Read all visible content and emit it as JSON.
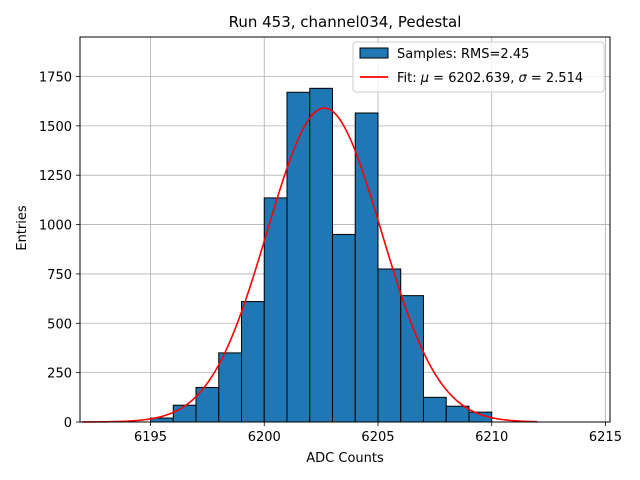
{
  "chart_data": {
    "type": "bar",
    "title": "Run 453, channel034, Pedestal",
    "xlabel": "ADC Counts",
    "ylabel": "Entries",
    "xlim": [
      6191.9,
      6215.2
    ],
    "ylim": [
      0,
      1950
    ],
    "grid": true,
    "legend_placement": "top-right",
    "x_ticks": [
      6195,
      6200,
      6205,
      6210,
      6215
    ],
    "y_ticks": [
      0,
      250,
      500,
      750,
      1000,
      1250,
      1500,
      1750
    ],
    "histogram": {
      "name": "Samples: RMS=2.45",
      "color": "#1f77b4",
      "bin_edges": [
        6195,
        6196,
        6197,
        6198,
        6199,
        6200,
        6201,
        6202,
        6203,
        6204,
        6205,
        6206,
        6207,
        6208,
        6209,
        6210
      ],
      "counts": [
        20,
        85,
        175,
        350,
        610,
        1135,
        1670,
        1690,
        950,
        1565,
        775,
        640,
        125,
        80,
        50
      ]
    },
    "fit": {
      "name_prefix": "Fit: ",
      "mu_symbol": "μ",
      "mu_text": " = 6202.639, ",
      "sigma_symbol": "σ",
      "sigma_text": " = 2.514",
      "color": "#ff0000",
      "mu": 6202.639,
      "sigma": 2.514,
      "amplitude": 1590,
      "x_range": [
        6192,
        6212
      ]
    }
  }
}
